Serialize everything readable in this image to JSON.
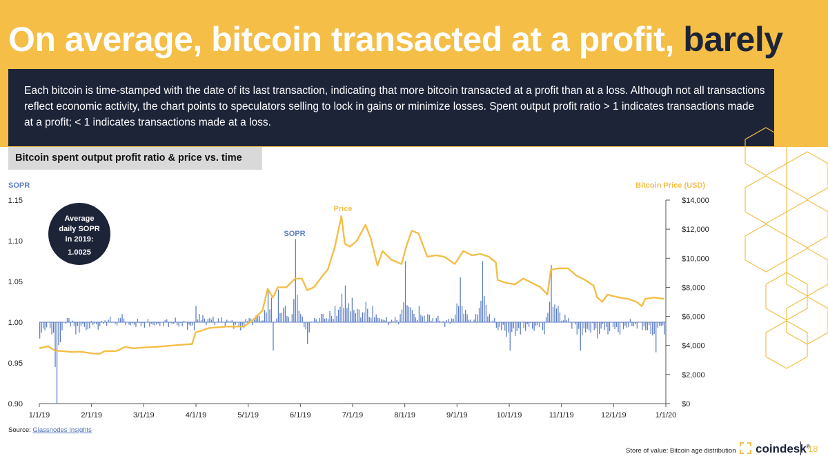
{
  "header": {
    "title_main": "On average, bitcoin transacted at a profit, ",
    "title_emphasis": "barely",
    "description": "Each bitcoin is time-stamped with the date of its last transaction,  indicating that more bitcoin transacted at a profit than at a loss. Although not all transactions reflect economic activity, the chart points to speculators selling to lock in gains or minimize losses. Spent output profit ratio > 1 indicates transactions made at a profit; < 1 indicates transactions made at a loss."
  },
  "chart_data": {
    "type": "bar",
    "title": "Bitcoin spent output profit ratio & price vs. time",
    "left_axis_label": "SOPR",
    "right_axis_label": "Bitcoin Price (USD)",
    "left_ticks": [
      "1.15",
      "1.10",
      "1.05",
      "1.00",
      "0.95",
      "0.90"
    ],
    "left_tick_values": [
      1.15,
      1.1,
      1.05,
      1.0,
      0.95,
      0.9
    ],
    "right_ticks": [
      "$14,000",
      "$12,000",
      "$10,000",
      "$8,000",
      "$6,000",
      "$4,000",
      "$2,000",
      "$0"
    ],
    "right_tick_values": [
      14000,
      12000,
      10000,
      8000,
      6000,
      4000,
      2000,
      0
    ],
    "x_ticks": [
      "1/1/19",
      "2/1/19",
      "3/1/19",
      "4/1/19",
      "5/1/19",
      "6/1/19",
      "7/1/19",
      "8/1/19",
      "9/1/19",
      "10/1/19",
      "11/1/19",
      "12/1/19",
      "1/1/20"
    ],
    "x_range": [
      "2019-01-01",
      "2020-01-01"
    ],
    "sopr_baseline": 1.0,
    "ylim_sopr": [
      0.9,
      1.15
    ],
    "ylim_price": [
      0,
      14000
    ],
    "series_labels": {
      "price": "Price",
      "sopr": "SOPR"
    },
    "colors": {
      "sopr": "#5d7fc4",
      "price": "#f4be47"
    },
    "price_series": [
      [
        "2019-01-01",
        3800
      ],
      [
        "2019-01-06",
        3950
      ],
      [
        "2019-01-10",
        3650
      ],
      [
        "2019-01-15",
        3600
      ],
      [
        "2019-01-20",
        3550
      ],
      [
        "2019-01-25",
        3570
      ],
      [
        "2019-02-01",
        3450
      ],
      [
        "2019-02-05",
        3420
      ],
      [
        "2019-02-08",
        3600
      ],
      [
        "2019-02-15",
        3620
      ],
      [
        "2019-02-20",
        3900
      ],
      [
        "2019-02-25",
        3800
      ],
      [
        "2019-03-01",
        3850
      ],
      [
        "2019-03-10",
        3900
      ],
      [
        "2019-03-20",
        4000
      ],
      [
        "2019-03-31",
        4100
      ],
      [
        "2019-04-02",
        4900
      ],
      [
        "2019-04-05",
        5000
      ],
      [
        "2019-04-10",
        5200
      ],
      [
        "2019-04-20",
        5300
      ],
      [
        "2019-04-30",
        5300
      ],
      [
        "2019-05-05",
        5700
      ],
      [
        "2019-05-11",
        6400
      ],
      [
        "2019-05-14",
        7900
      ],
      [
        "2019-05-17",
        7300
      ],
      [
        "2019-05-20",
        8000
      ],
      [
        "2019-05-25",
        8000
      ],
      [
        "2019-05-30",
        8600
      ],
      [
        "2019-06-03",
        8600
      ],
      [
        "2019-06-06",
        7800
      ],
      [
        "2019-06-10",
        8000
      ],
      [
        "2019-06-15",
        8800
      ],
      [
        "2019-06-18",
        9200
      ],
      [
        "2019-06-22",
        10700
      ],
      [
        "2019-06-26",
        12900
      ],
      [
        "2019-06-28",
        11000
      ],
      [
        "2019-07-01",
        10800
      ],
      [
        "2019-07-05",
        11200
      ],
      [
        "2019-07-10",
        12300
      ],
      [
        "2019-07-13",
        11400
      ],
      [
        "2019-07-17",
        9500
      ],
      [
        "2019-07-20",
        10500
      ],
      [
        "2019-07-25",
        9900
      ],
      [
        "2019-07-31",
        9600
      ],
      [
        "2019-08-03",
        10900
      ],
      [
        "2019-08-06",
        11900
      ],
      [
        "2019-08-10",
        11700
      ],
      [
        "2019-08-15",
        10100
      ],
      [
        "2019-08-20",
        10200
      ],
      [
        "2019-08-25",
        10100
      ],
      [
        "2019-08-31",
        9600
      ],
      [
        "2019-09-05",
        10500
      ],
      [
        "2019-09-10",
        10200
      ],
      [
        "2019-09-15",
        10300
      ],
      [
        "2019-09-20",
        10100
      ],
      [
        "2019-09-24",
        9700
      ],
      [
        "2019-09-25",
        8500
      ],
      [
        "2019-09-30",
        8300
      ],
      [
        "2019-10-05",
        8200
      ],
      [
        "2019-10-10",
        8600
      ],
      [
        "2019-10-15",
        8300
      ],
      [
        "2019-10-20",
        8000
      ],
      [
        "2019-10-24",
        7500
      ],
      [
        "2019-10-26",
        9200
      ],
      [
        "2019-10-30",
        9300
      ],
      [
        "2019-11-05",
        9300
      ],
      [
        "2019-11-10",
        8800
      ],
      [
        "2019-11-15",
        8500
      ],
      [
        "2019-11-20",
        8100
      ],
      [
        "2019-11-22",
        7300
      ],
      [
        "2019-11-25",
        7000
      ],
      [
        "2019-11-28",
        7500
      ],
      [
        "2019-12-01",
        7400
      ],
      [
        "2019-12-05",
        7300
      ],
      [
        "2019-12-10",
        7200
      ],
      [
        "2019-12-15",
        7000
      ],
      [
        "2019-12-18",
        6700
      ],
      [
        "2019-12-20",
        7200
      ],
      [
        "2019-12-25",
        7300
      ],
      [
        "2019-12-31",
        7200
      ]
    ],
    "sopr_series": [
      [
        "2019-01-01",
        0.98
      ],
      [
        "2019-01-04",
        0.99
      ],
      [
        "2019-01-08",
        0.985
      ],
      [
        "2019-01-10",
        0.945
      ],
      [
        "2019-01-11",
        0.9
      ],
      [
        "2019-01-14",
        0.99
      ],
      [
        "2019-01-18",
        1.005
      ],
      [
        "2019-01-22",
        0.985
      ],
      [
        "2019-01-28",
        0.99
      ],
      [
        "2019-02-05",
        0.995
      ],
      [
        "2019-02-10",
        1.003
      ],
      [
        "2019-02-15",
        0.996
      ],
      [
        "2019-02-18",
        1.01
      ],
      [
        "2019-02-22",
        0.997
      ],
      [
        "2019-03-01",
        0.995
      ],
      [
        "2019-03-10",
        0.997
      ],
      [
        "2019-03-20",
        0.998
      ],
      [
        "2019-04-01",
        0.99
      ],
      [
        "2019-04-02",
        1.02
      ],
      [
        "2019-04-04",
        1.01
      ],
      [
        "2019-04-10",
        1.005
      ],
      [
        "2019-04-20",
        1.003
      ],
      [
        "2019-04-28",
        0.99
      ],
      [
        "2019-05-03",
        1.005
      ],
      [
        "2019-05-08",
        1.01
      ],
      [
        "2019-05-12",
        1.015
      ],
      [
        "2019-05-14",
        1.038
      ],
      [
        "2019-05-16",
        1.03
      ],
      [
        "2019-05-17",
        0.965
      ],
      [
        "2019-05-20",
        1.04
      ],
      [
        "2019-05-24",
        1.02
      ],
      [
        "2019-05-28",
        1.01
      ],
      [
        "2019-05-30",
        1.102
      ],
      [
        "2019-06-02",
        1.01
      ],
      [
        "2019-06-06",
        0.973
      ],
      [
        "2019-06-10",
        1.005
      ],
      [
        "2019-06-15",
        1.01
      ],
      [
        "2019-06-22",
        1.02
      ],
      [
        "2019-06-26",
        1.035
      ],
      [
        "2019-06-28",
        1.045
      ],
      [
        "2019-07-02",
        1.03
      ],
      [
        "2019-07-10",
        1.025
      ],
      [
        "2019-07-14",
        1.02
      ],
      [
        "2019-07-18",
        1.005
      ],
      [
        "2019-07-25",
        1.003
      ],
      [
        "2019-07-30",
        1.01
      ],
      [
        "2019-08-02",
        1.075
      ],
      [
        "2019-08-06",
        1.015
      ],
      [
        "2019-08-10",
        1.02
      ],
      [
        "2019-08-15",
        1.01
      ],
      [
        "2019-08-20",
        1.005
      ],
      [
        "2019-08-28",
        0.998
      ],
      [
        "2019-09-03",
        1.055
      ],
      [
        "2019-09-08",
        1.003
      ],
      [
        "2019-09-12",
        1.01
      ],
      [
        "2019-09-16",
        1.075
      ],
      [
        "2019-09-20",
        1.01
      ],
      [
        "2019-09-25",
        0.99
      ],
      [
        "2019-10-02",
        0.965
      ],
      [
        "2019-10-08",
        0.985
      ],
      [
        "2019-10-15",
        0.992
      ],
      [
        "2019-10-22",
        0.985
      ],
      [
        "2019-10-26",
        1.07
      ],
      [
        "2019-10-30",
        1.02
      ],
      [
        "2019-11-05",
        1.005
      ],
      [
        "2019-11-10",
        0.985
      ],
      [
        "2019-11-12",
        0.965
      ],
      [
        "2019-11-20",
        0.99
      ],
      [
        "2019-11-22",
        0.98
      ],
      [
        "2019-11-28",
        0.985
      ],
      [
        "2019-12-05",
        0.985
      ],
      [
        "2019-12-12",
        0.995
      ],
      [
        "2019-12-18",
        0.99
      ],
      [
        "2019-12-26",
        0.963
      ],
      [
        "2019-12-29",
        0.995
      ],
      [
        "2019-12-31",
        0.985
      ]
    ],
    "annotation": {
      "line1": "Average",
      "line2": "daily SOPR",
      "line3": "in 2019:",
      "value": "1.0025"
    }
  },
  "footer": {
    "source_label": "Source: ",
    "source_link": "Glassnodes Insights",
    "section": "Store of value: Bitcoin age distribution",
    "brand": "coindesk",
    "brand_mark": "®",
    "page": "18"
  }
}
